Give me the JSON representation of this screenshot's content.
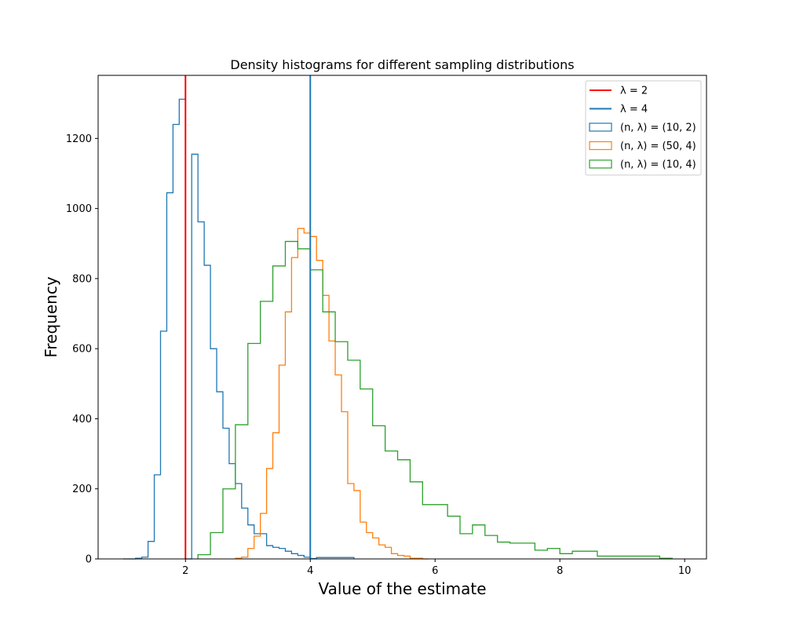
{
  "chart_data": {
    "type": "histogram",
    "title": "Density histograms for different sampling distributions",
    "xlabel": "Value of the estimate",
    "ylabel": "Frequency",
    "xlim": [
      0.6,
      10.35
    ],
    "ylim": [
      0,
      1380
    ],
    "xticks": [
      2,
      4,
      6,
      8,
      10
    ],
    "yticks": [
      0,
      200,
      400,
      600,
      800,
      1000,
      1200
    ],
    "grid": false,
    "legend_position": "top-right",
    "vlines": [
      {
        "label": "λ = 2",
        "x": 2,
        "color": "#ff0000"
      },
      {
        "label": "λ = 4",
        "x": 4,
        "color": "#1f77b4"
      }
    ],
    "series": [
      {
        "name": "(n, λ) = (10, 2)",
        "color": "#1f77b4",
        "bin_edges": [
          1.0,
          1.1,
          1.2,
          1.3,
          1.4,
          1.5,
          1.6,
          1.7,
          1.8,
          1.9,
          2.0,
          2.1,
          2.2,
          2.3,
          2.4,
          2.5,
          2.6,
          2.7,
          2.8,
          2.9,
          3.0,
          3.1,
          3.2,
          3.3,
          3.4,
          3.5,
          3.6,
          3.7,
          3.8,
          3.9,
          4.0,
          4.1,
          4.2,
          4.3,
          4.4,
          4.5,
          4.6,
          4.7
        ],
        "counts": [
          0,
          0,
          2,
          5,
          50,
          240,
          650,
          1045,
          1240,
          1312,
          0,
          1155,
          962,
          838,
          600,
          477,
          373,
          272,
          215,
          145,
          97,
          72,
          72,
          38,
          33,
          30,
          22,
          15,
          10,
          5,
          1,
          4,
          4,
          4,
          4,
          4,
          4
        ]
      },
      {
        "name": "(n, λ) = (50, 4)",
        "color": "#ff7f0e",
        "bin_edges": [
          2.8,
          2.9,
          3.0,
          3.1,
          3.2,
          3.3,
          3.4,
          3.5,
          3.6,
          3.7,
          3.8,
          3.9,
          4.0,
          4.1,
          4.2,
          4.3,
          4.4,
          4.5,
          4.6,
          4.7,
          4.8,
          4.9,
          5.0,
          5.1,
          5.2,
          5.3,
          5.4,
          5.5,
          5.6,
          5.7,
          5.8,
          5.9
        ],
        "counts": [
          2,
          5,
          30,
          65,
          130,
          258,
          360,
          553,
          705,
          860,
          943,
          930,
          920,
          852,
          752,
          622,
          525,
          420,
          215,
          195,
          105,
          75,
          60,
          40,
          33,
          15,
          10,
          8,
          2,
          2,
          0
        ]
      },
      {
        "name": "(n, λ) = (10, 4)",
        "color": "#2ca02c",
        "bin_edges": [
          2.2,
          2.4,
          2.6,
          2.8,
          3.0,
          3.2,
          3.4,
          3.6,
          3.8,
          4.0,
          4.2,
          4.4,
          4.6,
          4.8,
          5.0,
          5.2,
          5.4,
          5.6,
          5.8,
          6.0,
          6.2,
          6.4,
          6.6,
          6.8,
          7.0,
          7.2,
          7.4,
          7.6,
          7.8,
          8.0,
          8.2,
          8.4,
          8.6,
          8.8,
          9.0,
          9.2,
          9.4,
          9.6,
          9.8
        ],
        "counts": [
          12,
          75,
          200,
          383,
          615,
          735,
          836,
          906,
          885,
          825,
          705,
          620,
          567,
          485,
          380,
          308,
          283,
          220,
          155,
          155,
          122,
          72,
          97,
          67,
          48,
          45,
          45,
          25,
          30,
          15,
          22,
          22,
          8,
          8,
          8,
          8,
          8,
          2
        ]
      }
    ]
  }
}
